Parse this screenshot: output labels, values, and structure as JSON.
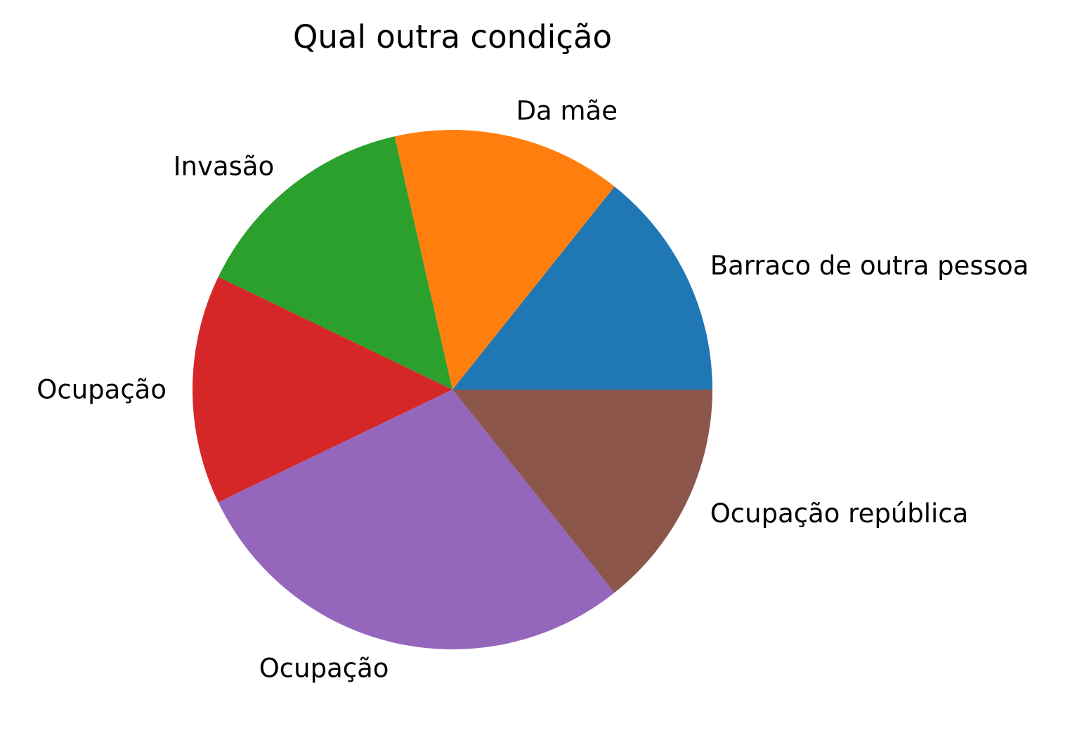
{
  "chart_data": {
    "type": "pie",
    "title": "Qual outra condição",
    "start_angle_deg": 0,
    "direction": "counterclockwise",
    "slices": [
      {
        "label": "Barraco de outra pessoa",
        "value": 1,
        "color": "#1f77b4"
      },
      {
        "label": "Da mãe",
        "value": 1,
        "color": "#ff7f0e"
      },
      {
        "label": "Invasão",
        "value": 1,
        "color": "#2ca02c"
      },
      {
        "label": "Ocupação",
        "value": 1,
        "color": "#d62728"
      },
      {
        "label": "Ocupação",
        "value": 2,
        "color": "#9467bd"
      },
      {
        "label": "Ocupação república",
        "value": 1,
        "color": "#8c564b"
      }
    ]
  }
}
